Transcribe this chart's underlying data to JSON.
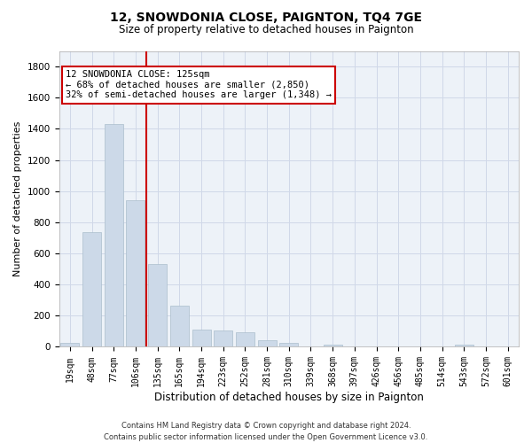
{
  "title": "12, SNOWDONIA CLOSE, PAIGNTON, TQ4 7GE",
  "subtitle": "Size of property relative to detached houses in Paignton",
  "xlabel": "Distribution of detached houses by size in Paignton",
  "ylabel": "Number of detached properties",
  "bar_labels": [
    "19sqm",
    "48sqm",
    "77sqm",
    "106sqm",
    "135sqm",
    "165sqm",
    "194sqm",
    "223sqm",
    "252sqm",
    "281sqm",
    "310sqm",
    "339sqm",
    "368sqm",
    "397sqm",
    "426sqm",
    "456sqm",
    "485sqm",
    "514sqm",
    "543sqm",
    "572sqm",
    "601sqm"
  ],
  "bar_values": [
    25,
    735,
    1430,
    940,
    530,
    265,
    110,
    107,
    95,
    42,
    25,
    0,
    15,
    0,
    0,
    0,
    0,
    0,
    15,
    0,
    0
  ],
  "bar_color": "#ccd9e8",
  "bar_edgecolor": "#aabdcc",
  "ylim": [
    0,
    1900
  ],
  "yticks": [
    0,
    200,
    400,
    600,
    800,
    1000,
    1200,
    1400,
    1600,
    1800
  ],
  "vline_x": 3.5,
  "vline_color": "#cc0000",
  "annotation_line1": "12 SNOWDONIA CLOSE: 125sqm",
  "annotation_line2": "← 68% of detached houses are smaller (2,850)",
  "annotation_line3": "32% of semi-detached houses are larger (1,348) →",
  "annotation_box_edgecolor": "#cc0000",
  "footer": "Contains HM Land Registry data © Crown copyright and database right 2024.\nContains public sector information licensed under the Open Government Licence v3.0.",
  "bg_color": "#edf2f8",
  "grid_color": "#d0d8e8",
  "title_fontsize": 10,
  "subtitle_fontsize": 8.5,
  "ylabel_fontsize": 8,
  "xlabel_fontsize": 8.5,
  "tick_fontsize": 7,
  "footer_fontsize": 6,
  "annotation_fontsize": 7.5
}
